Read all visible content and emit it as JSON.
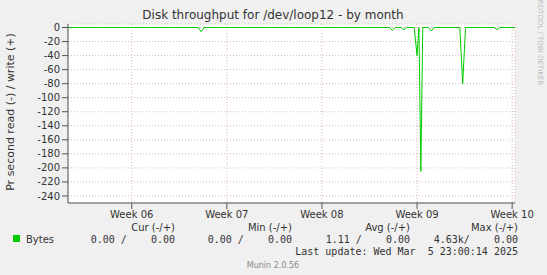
{
  "chart_data": {
    "type": "line",
    "title": "Disk throughput for /dev/loop12 - by month",
    "y_label": "Pr second read (-) / write (+)",
    "side_text": "RRDTOOL / TOBI OETIKER",
    "x": [
      5.33,
      6.7,
      6.73,
      6.76,
      8.71,
      8.74,
      8.77,
      8.83,
      8.86,
      8.89,
      8.97,
      9.0,
      9.02,
      9.04,
      9.06,
      9.12,
      9.15,
      9.18,
      9.45,
      9.48,
      9.51,
      9.81,
      9.84,
      9.87,
      10.03
    ],
    "series": [
      {
        "name": "Bytes",
        "color": "#00cc00",
        "values": [
          0,
          0,
          -6,
          0,
          0,
          -4,
          0,
          0,
          -3,
          0,
          0,
          -40,
          0,
          -205,
          0,
          0,
          -5,
          0,
          0,
          -80,
          0,
          0,
          -3,
          0,
          0
        ]
      }
    ],
    "xlim": [
      5.33,
      10.03
    ],
    "xticks": [
      {
        "value": 6,
        "label": "Week 06"
      },
      {
        "value": 7,
        "label": "Week 07"
      },
      {
        "value": 8,
        "label": "Week 08"
      },
      {
        "value": 9,
        "label": "Week 09"
      },
      {
        "value": 10,
        "label": "Week 10"
      }
    ],
    "ylim": [
      -250,
      5
    ],
    "yticks": [
      0,
      -20,
      -40,
      -60,
      -80,
      -100,
      -120,
      -140,
      -160,
      -180,
      -200,
      -220,
      -240
    ],
    "grid": true,
    "stats_headers": [
      "Cur (-/+)",
      "Min (-/+)",
      "Avg (-/+)",
      "Max (-/+)"
    ],
    "stats": [
      "0.00 /    0.00",
      "0.00 /    0.00",
      "1.11 /    0.00",
      "4.63k/    0.00"
    ],
    "last_update": "Last update: Wed Mar  5 23:00:14 2025",
    "footer": "Munin 2.0.56"
  }
}
